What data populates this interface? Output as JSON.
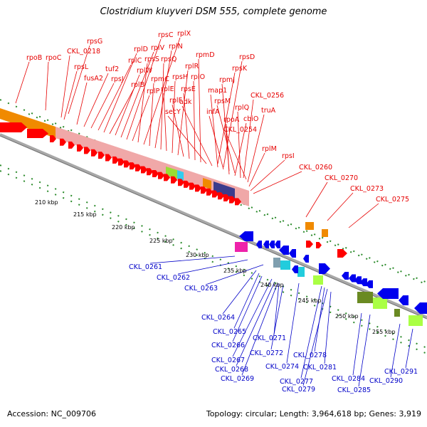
{
  "title": "Clostridium kluyveri DSM 555, complete genome",
  "footer": {
    "accession": "Accession: NC_009706",
    "info": "Topology: circular; Length: 3,964,618 bp; Genes: 3,919"
  },
  "colors": {
    "forward_label": "#e60000",
    "reverse_label": "#0000c8",
    "backbone": "#a0a0a0",
    "dots": "#2a8a2a"
  },
  "scale_ticks": [
    "210 kbp",
    "215 kbp",
    "220 kbp",
    "225 kbp",
    "230 kbp",
    "235 kbp",
    "240 kbp",
    "245 kbp",
    "250 kbp",
    "255 kbp"
  ],
  "forward_genes": [
    "rpoB",
    "rpoC",
    "CKL_0218",
    "rpsG",
    "rpsL",
    "fusA2",
    "tuf2",
    "rpsJ",
    "rplC",
    "rplD",
    "rplB",
    "rplW",
    "rplV",
    "rpsC",
    "rplP",
    "rpsS",
    "rplX",
    "rpmC",
    "rplN",
    "rpsQ",
    "rplE",
    "rpsH",
    "rplR",
    "rplF",
    "rpsE",
    "rplO",
    "rpmD",
    "secY",
    "adk",
    "map1",
    "infA",
    "rpmJ",
    "rpsM",
    "rpsK",
    "rpsD",
    "rpoA",
    "cbiO",
    "rplQ",
    "CKL_0254",
    "CKL_0256",
    "truA",
    "rplM",
    "rpsI",
    "CKL_0260",
    "CKL_0270",
    "CKL_0273",
    "CKL_0275"
  ],
  "reverse_genes": [
    "CKL_0261",
    "CKL_0262",
    "CKL_0263",
    "CKL_0264",
    "CKL_0265",
    "CKL_0266",
    "CKL_0267",
    "CKL_0268",
    "CKL_0269",
    "CKL_0271",
    "CKL_0272",
    "CKL_0274",
    "CKL_0277",
    "CKL_0278",
    "CKL_0279",
    "CKL_0281",
    "CKL_0284",
    "CKL_0285",
    "CKL_0290",
    "CKL_0291"
  ]
}
